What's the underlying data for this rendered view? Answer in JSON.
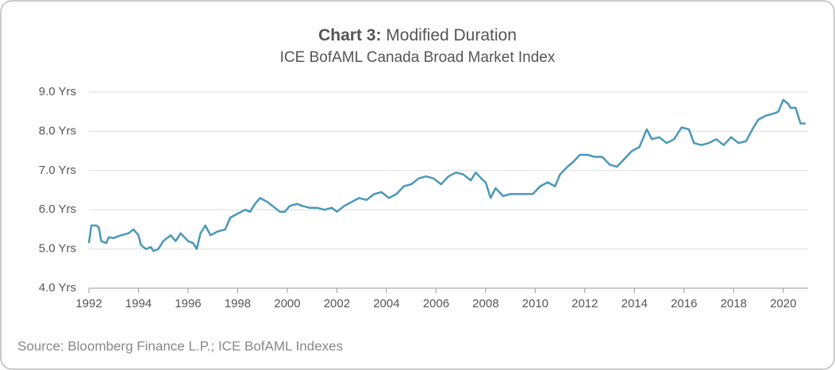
{
  "chart_data": {
    "type": "line",
    "title_label": "Chart 3:",
    "title": "Modified Duration",
    "subtitle": "ICE BofAML Canada Broad Market Index",
    "source": "Source: Bloomberg Finance L.P.; ICE BofAML Indexes",
    "color": "#4a97b9",
    "grid": true,
    "xlim": [
      1992,
      2021
    ],
    "xticks": [
      1992,
      1994,
      1996,
      1998,
      2000,
      2002,
      2004,
      2006,
      2008,
      2010,
      2012,
      2014,
      2016,
      2018,
      2020
    ],
    "ylim": [
      4,
      9
    ],
    "yticks": [
      {
        "value": 4,
        "label": "4.0 Yrs"
      },
      {
        "value": 5,
        "label": "5.0 Yrs"
      },
      {
        "value": 6,
        "label": "6.0 Yrs"
      },
      {
        "value": 7,
        "label": "7.0 Yrs"
      },
      {
        "value": 8,
        "label": "8.0 Yrs"
      },
      {
        "value": 9,
        "label": "9.0 Yrs"
      }
    ],
    "x": [
      1992.0,
      1992.1,
      1992.3,
      1992.4,
      1992.5,
      1992.7,
      1992.8,
      1993.0,
      1993.3,
      1993.6,
      1993.8,
      1994.0,
      1994.1,
      1994.3,
      1994.5,
      1994.6,
      1994.8,
      1995.0,
      1995.3,
      1995.5,
      1995.7,
      1996.0,
      1996.2,
      1996.35,
      1996.5,
      1996.7,
      1996.9,
      1997.2,
      1997.5,
      1997.7,
      1998.0,
      1998.3,
      1998.5,
      1998.7,
      1998.9,
      1999.2,
      1999.4,
      1999.7,
      1999.9,
      2000.1,
      2000.4,
      2000.6,
      2000.9,
      2001.2,
      2001.5,
      2001.8,
      2002.0,
      2002.3,
      2002.6,
      2002.9,
      2003.2,
      2003.5,
      2003.8,
      2004.1,
      2004.4,
      2004.7,
      2005.0,
      2005.3,
      2005.6,
      2005.9,
      2006.2,
      2006.5,
      2006.8,
      2007.1,
      2007.4,
      2007.6,
      2007.9,
      2008.0,
      2008.2,
      2008.4,
      2008.7,
      2009.0,
      2009.3,
      2009.6,
      2009.9,
      2010.2,
      2010.5,
      2010.8,
      2011.0,
      2011.3,
      2011.5,
      2011.8,
      2012.1,
      2012.4,
      2012.7,
      2013.0,
      2013.3,
      2013.6,
      2013.9,
      2014.2,
      2014.5,
      2014.7,
      2015.0,
      2015.3,
      2015.6,
      2015.9,
      2016.2,
      2016.4,
      2016.7,
      2017.0,
      2017.3,
      2017.6,
      2017.9,
      2018.2,
      2018.5,
      2018.8,
      2019.0,
      2019.3,
      2019.6,
      2019.8,
      2020.0,
      2020.2,
      2020.3,
      2020.5,
      2020.7,
      2020.9
    ],
    "values": [
      5.15,
      5.6,
      5.6,
      5.55,
      5.2,
      5.15,
      5.3,
      5.28,
      5.35,
      5.4,
      5.5,
      5.35,
      5.1,
      5.0,
      5.05,
      4.95,
      5.0,
      5.2,
      5.35,
      5.2,
      5.4,
      5.2,
      5.15,
      5.0,
      5.4,
      5.6,
      5.35,
      5.45,
      5.5,
      5.8,
      5.9,
      6.0,
      5.95,
      6.15,
      6.3,
      6.2,
      6.1,
      5.95,
      5.95,
      6.1,
      6.15,
      6.1,
      6.05,
      6.05,
      6.0,
      6.05,
      5.95,
      6.1,
      6.2,
      6.3,
      6.25,
      6.4,
      6.45,
      6.3,
      6.4,
      6.6,
      6.65,
      6.8,
      6.85,
      6.8,
      6.65,
      6.85,
      6.95,
      6.9,
      6.75,
      6.95,
      6.75,
      6.7,
      6.3,
      6.55,
      6.35,
      6.4,
      6.4,
      6.4,
      6.4,
      6.6,
      6.7,
      6.6,
      6.9,
      7.1,
      7.2,
      7.4,
      7.4,
      7.35,
      7.35,
      7.15,
      7.1,
      7.3,
      7.5,
      7.6,
      8.05,
      7.8,
      7.85,
      7.7,
      7.8,
      8.1,
      8.05,
      7.7,
      7.65,
      7.7,
      7.8,
      7.65,
      7.85,
      7.7,
      7.75,
      8.1,
      8.3,
      8.4,
      8.45,
      8.5,
      8.8,
      8.7,
      8.6,
      8.6,
      8.2,
      8.2
    ]
  }
}
